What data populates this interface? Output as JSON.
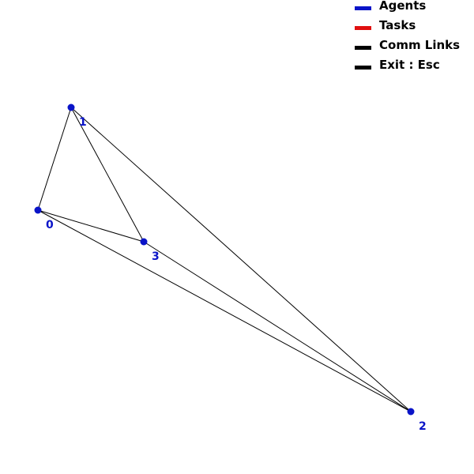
{
  "legend": {
    "items": [
      {
        "label": "Agents",
        "color": "#0a14c8"
      },
      {
        "label": "Tasks",
        "color": "#e01010"
      },
      {
        "label": "Comm Links",
        "color": "#000000"
      },
      {
        "label": "Exit : Esc",
        "color": "#000000"
      }
    ]
  },
  "graph": {
    "agent_color": "#0a14c8",
    "link_color": "#000000",
    "agents": [
      {
        "id": "0"
      },
      {
        "id": "1"
      },
      {
        "id": "2"
      },
      {
        "id": "3"
      }
    ],
    "links": [
      [
        "0",
        "1"
      ],
      [
        "1",
        "3"
      ],
      [
        "1",
        "2"
      ],
      [
        "0",
        "3"
      ],
      [
        "0",
        "2"
      ],
      [
        "3",
        "2"
      ]
    ]
  }
}
